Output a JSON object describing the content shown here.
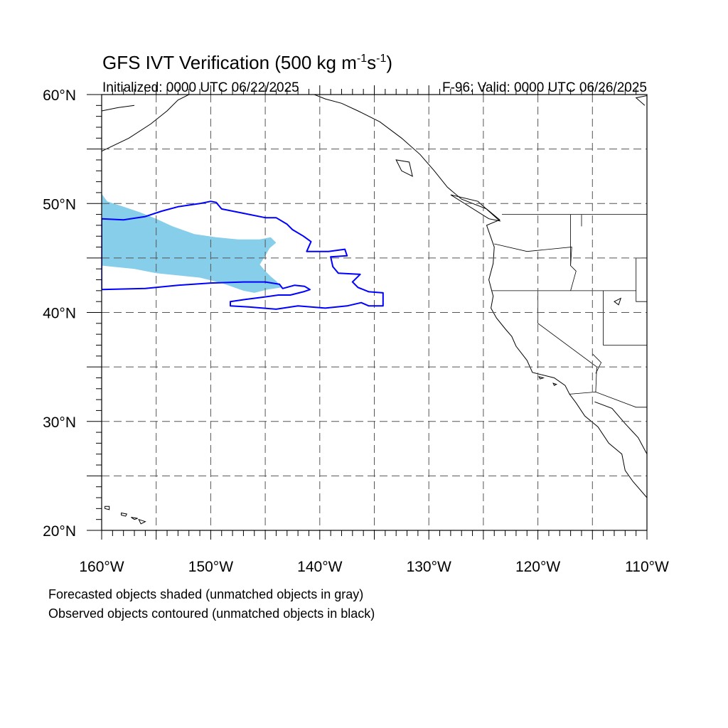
{
  "title": {
    "main": "GFS IVT Verification (500 kg m",
    "exp1": "-1",
    "mid": "s",
    "exp2": "-1",
    "close": ")"
  },
  "init_label": "Initialized: 0000 UTC 06/22/2025",
  "valid_label": "F-96: Valid: 0000 UTC 06/26/2025",
  "lat_labels": [
    {
      "value": 60,
      "label": "60°N"
    },
    {
      "value": 50,
      "label": "50°N"
    },
    {
      "value": 40,
      "label": "40°N"
    },
    {
      "value": 30,
      "label": "30°N"
    },
    {
      "value": 20,
      "label": "20°N"
    }
  ],
  "lon_labels": [
    {
      "value": -160,
      "label": "160°W"
    },
    {
      "value": -150,
      "label": "150°W"
    },
    {
      "value": -140,
      "label": "140°W"
    },
    {
      "value": -130,
      "label": "130°W"
    },
    {
      "value": -120,
      "label": "120°W"
    },
    {
      "value": -110,
      "label": "110°W"
    }
  ],
  "footnotes": {
    "line1": "Forecasted objects shaded (unmatched objects in gray)",
    "line2": "Observed objects contoured (unmatched objects in black)"
  },
  "colors": {
    "forecast_fill": "#87ceeb",
    "observed_contour": "#0000ff",
    "coastline": "#000000",
    "grid": "#555555"
  },
  "chart_data": {
    "type": "map",
    "projection": "cylindrical-equidistant",
    "lon_range": [
      -160,
      -110
    ],
    "lat_range": [
      20,
      60
    ],
    "grid_lines_lon": [
      -155,
      -150,
      -145,
      -140,
      -135,
      -130,
      -125,
      -120,
      -115
    ],
    "grid_lines_lat": [
      25,
      30,
      35,
      40,
      45,
      50,
      55
    ],
    "forecast_object": {
      "fill": "#87ceeb",
      "boundary_lonlat": [
        [
          -160,
          50.9
        ],
        [
          -159.5,
          50.2
        ],
        [
          -158,
          49.7
        ],
        [
          -156.5,
          49.2
        ],
        [
          -155,
          48.6
        ],
        [
          -153.5,
          47.9
        ],
        [
          -151.5,
          47.2
        ],
        [
          -149.5,
          46.9
        ],
        [
          -147.5,
          46.7
        ],
        [
          -145.5,
          46.7
        ],
        [
          -144.5,
          46.9
        ],
        [
          -144.0,
          46.4
        ],
        [
          -144.6,
          45.9
        ],
        [
          -145.0,
          45.2
        ],
        [
          -145.5,
          44.4
        ],
        [
          -145.0,
          43.8
        ],
        [
          -144.5,
          43.3
        ],
        [
          -144.0,
          42.9
        ],
        [
          -143.5,
          42.3
        ],
        [
          -144.8,
          42.1
        ],
        [
          -146,
          41.8
        ],
        [
          -147,
          42.0
        ],
        [
          -149,
          42.7
        ],
        [
          -151,
          43.2
        ],
        [
          -153,
          43.4
        ],
        [
          -155,
          43.6
        ],
        [
          -157,
          44.0
        ],
        [
          -160,
          44.3
        ]
      ]
    },
    "observed_objects": [
      {
        "color": "#0000ff",
        "contour_lonlat": [
          [
            -160,
            48.6
          ],
          [
            -158,
            48.5
          ],
          [
            -156,
            48.8
          ],
          [
            -154.5,
            49.3
          ],
          [
            -153,
            49.7
          ],
          [
            -151,
            50.0
          ],
          [
            -150,
            50.2
          ],
          [
            -149.5,
            50.1
          ],
          [
            -149,
            49.5
          ],
          [
            -147,
            49.1
          ],
          [
            -145,
            48.7
          ],
          [
            -144,
            48.7
          ],
          [
            -143,
            48.1
          ],
          [
            -142.5,
            47.6
          ],
          [
            -141.5,
            47.0
          ],
          [
            -140.8,
            46.5
          ],
          [
            -141.2,
            45.6
          ],
          [
            -139.2,
            45.6
          ],
          [
            -137.7,
            45.8
          ],
          [
            -137.5,
            45.2
          ],
          [
            -139,
            45.1
          ],
          [
            -138.8,
            44.2
          ],
          [
            -138.3,
            43.6
          ],
          [
            -136.3,
            43.5
          ],
          [
            -137,
            42.8
          ],
          [
            -136.5,
            42.3
          ],
          [
            -135.5,
            41.9
          ],
          [
            -134.2,
            41.8
          ],
          [
            -134.2,
            40.6
          ],
          [
            -135.5,
            40.6
          ],
          [
            -136.2,
            40.9
          ],
          [
            -137.5,
            40.6
          ],
          [
            -139.5,
            40.4
          ],
          [
            -142,
            40.6
          ],
          [
            -144,
            40.3
          ],
          [
            -146.5,
            40.5
          ],
          [
            -148.2,
            40.6
          ],
          [
            -148.2,
            41.0
          ],
          [
            -146.8,
            41.2
          ],
          [
            -145.2,
            41.4
          ],
          [
            -143.8,
            41.6
          ],
          [
            -142.7,
            41.6
          ],
          [
            -141.5,
            41.9
          ],
          [
            -140.9,
            42.1
          ],
          [
            -141.4,
            42.4
          ],
          [
            -142.3,
            42.5
          ],
          [
            -143.4,
            42.2
          ],
          [
            -143.7,
            42.6
          ],
          [
            -145,
            42.8
          ],
          [
            -147,
            42.8
          ],
          [
            -150,
            42.7
          ],
          [
            -153,
            42.5
          ],
          [
            -156,
            42.2
          ],
          [
            -160,
            42.1
          ]
        ]
      }
    ],
    "coastlines_lonlat": [
      [
        [
          -110.0,
          23.0
        ],
        [
          -111.3,
          24.5
        ],
        [
          -112.0,
          25.5
        ],
        [
          -112.3,
          27.0
        ],
        [
          -113.5,
          28.0
        ],
        [
          -114.5,
          29.5
        ],
        [
          -115.7,
          30.5
        ],
        [
          -116.5,
          31.7
        ],
        [
          -117.1,
          32.5
        ],
        [
          -117.5,
          33.3
        ],
        [
          -118.5,
          34.0
        ],
        [
          -120.5,
          34.5
        ],
        [
          -121.0,
          35.6
        ],
        [
          -122.0,
          36.9
        ],
        [
          -122.4,
          37.8
        ],
        [
          -123.0,
          38.5
        ],
        [
          -123.8,
          39.5
        ],
        [
          -124.3,
          40.4
        ],
        [
          -124.1,
          41.5
        ],
        [
          -124.5,
          43.0
        ],
        [
          -124.1,
          44.5
        ],
        [
          -124.0,
          46.0
        ],
        [
          -124.7,
          48.0
        ],
        [
          -123.5,
          48.5
        ],
        [
          -124.7,
          49.5
        ],
        [
          -127.0,
          50.4
        ],
        [
          -128.3,
          51.5
        ],
        [
          -129.5,
          53.0
        ],
        [
          -130.8,
          54.5
        ],
        [
          -132.5,
          56.0
        ],
        [
          -134.5,
          57.5
        ],
        [
          -136.5,
          58.5
        ],
        [
          -138.0,
          59.2
        ],
        [
          -139.5,
          59.6
        ],
        [
          -140.5,
          60.0
        ]
      ],
      [
        [
          -160.0,
          54.8
        ],
        [
          -157.5,
          56.0
        ],
        [
          -155.5,
          57.3
        ],
        [
          -154.0,
          58.5
        ],
        [
          -153.0,
          59.5
        ],
        [
          -152.0,
          60.0
        ]
      ],
      [
        [
          -160.0,
          58.5
        ],
        [
          -158.5,
          58.8
        ],
        [
          -157.0,
          59.0
        ]
      ],
      [
        [
          -110.0,
          27.0
        ],
        [
          -110.8,
          28.5
        ],
        [
          -112.0,
          29.8
        ],
        [
          -113.2,
          31.2
        ],
        [
          -114.8,
          31.8
        ]
      ],
      [
        [
          -155.9,
          19.9
        ],
        [
          -155.0,
          20.0
        ]
      ],
      [
        [
          -110.2,
          59.0
        ],
        [
          -111.0,
          59.7
        ],
        [
          -110.0,
          59.9
        ]
      ]
    ],
    "islands_lonlat": [
      [
        [
          -159.7,
          22.2
        ],
        [
          -159.3,
          22.2
        ],
        [
          -159.3,
          21.9
        ],
        [
          -159.7,
          22.0
        ]
      ],
      [
        [
          -158.2,
          21.6
        ],
        [
          -157.7,
          21.5
        ],
        [
          -157.8,
          21.3
        ],
        [
          -158.2,
          21.4
        ]
      ],
      [
        [
          -157.3,
          21.2
        ],
        [
          -156.7,
          21.1
        ],
        [
          -157.0,
          21.0
        ]
      ],
      [
        [
          -156.6,
          21.0
        ],
        [
          -156.0,
          20.8
        ],
        [
          -156.4,
          20.6
        ]
      ],
      [
        [
          -119.9,
          34.1
        ],
        [
          -119.5,
          34.0
        ],
        [
          -119.8,
          33.9
        ]
      ],
      [
        [
          -118.6,
          33.5
        ],
        [
          -118.3,
          33.4
        ],
        [
          -118.5,
          33.3
        ]
      ],
      [
        [
          -133.0,
          54.0
        ],
        [
          -131.8,
          53.8
        ],
        [
          -131.5,
          52.5
        ],
        [
          -132.5,
          53.0
        ]
      ],
      [
        [
          -128.0,
          50.8
        ],
        [
          -125.5,
          50.2
        ],
        [
          -123.5,
          48.4
        ],
        [
          -124.5,
          48.6
        ]
      ],
      [
        [
          -113.0,
          41.0
        ],
        [
          -112.4,
          41.3
        ],
        [
          -112.6,
          40.7
        ]
      ]
    ],
    "borders_lonlat": [
      [
        [
          -123.3,
          49.0
        ],
        [
          -110.0,
          49.0
        ]
      ],
      [
        [
          -117.1,
          32.5
        ],
        [
          -114.7,
          32.7
        ],
        [
          -111.0,
          31.3
        ],
        [
          -110.0,
          31.3
        ]
      ],
      [
        [
          -124.2,
          42.0
        ],
        [
          -120.0,
          42.0
        ],
        [
          -120.0,
          39.0
        ],
        [
          -114.6,
          35.0
        ],
        [
          -114.7,
          32.7
        ]
      ],
      [
        [
          -120.0,
          42.0
        ],
        [
          -111.0,
          42.0
        ]
      ],
      [
        [
          -117.0,
          49.0
        ],
        [
          -117.0,
          44.3
        ],
        [
          -116.5,
          43.8
        ],
        [
          -117.0,
          42.0
        ]
      ],
      [
        [
          -124.0,
          46.3
        ],
        [
          -121.0,
          45.6
        ],
        [
          -116.9,
          46.0
        ],
        [
          -117.0,
          44.3
        ]
      ],
      [
        [
          -114.0,
          42.0
        ],
        [
          -114.0,
          37.0
        ],
        [
          -110.0,
          37.0
        ]
      ],
      [
        [
          -111.0,
          45.0
        ],
        [
          -110.0,
          45.0
        ]
      ],
      [
        [
          -116.0,
          49.0
        ],
        [
          -116.0,
          47.9
        ]
      ],
      [
        [
          -111.0,
          45.0
        ],
        [
          -111.0,
          41.0
        ],
        [
          -110.0,
          41.0
        ]
      ],
      [
        [
          -115.0,
          36.2
        ],
        [
          -114.2,
          35.4
        ],
        [
          -114.7,
          34.4
        ]
      ]
    ]
  }
}
